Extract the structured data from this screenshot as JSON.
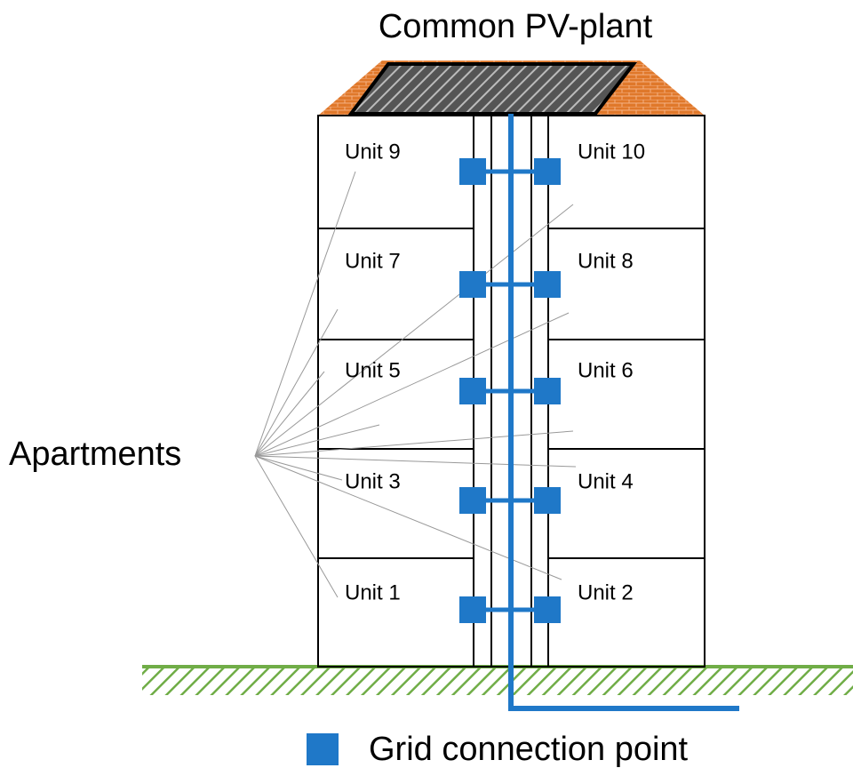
{
  "title": "Common PV-plant",
  "units": [
    "Unit 9",
    "Unit 10",
    "Unit 7",
    "Unit 8",
    "Unit 5",
    "Unit 6",
    "Unit 3",
    "Unit 4",
    "Unit 1",
    "Unit 2"
  ],
  "label": "Apartments",
  "legend": "Grid connection point"
}
